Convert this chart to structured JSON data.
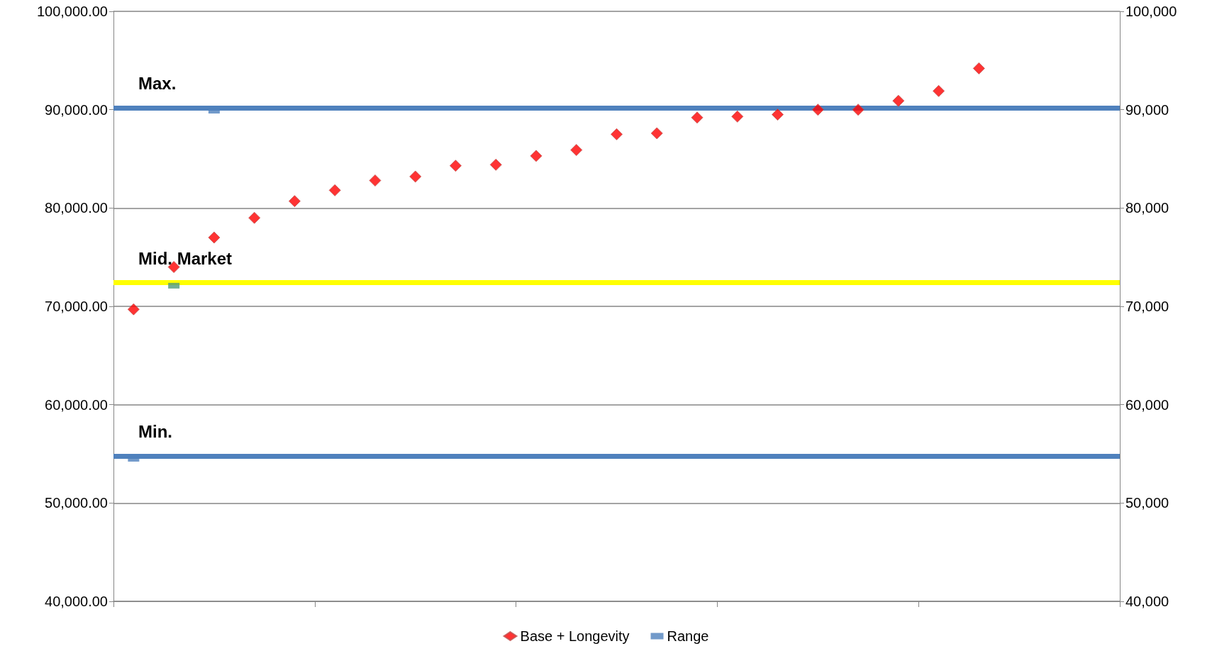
{
  "chart_data": {
    "type": "scatter",
    "categories": [
      null,
      null,
      null,
      null,
      null,
      null,
      null,
      null,
      null,
      null,
      null,
      null,
      null,
      null,
      null,
      null,
      null,
      null,
      null,
      null,
      null,
      null,
      null,
      null,
      null
    ],
    "series": [
      {
        "name": "Base + Longevity",
        "color": "#ff0000",
        "marker": "diamond",
        "values": [
          69700,
          74000,
          77000,
          79000,
          80700,
          81800,
          82800,
          83200,
          84300,
          84400,
          85300,
          85900,
          87500,
          87600,
          89200,
          89300,
          89500,
          90000,
          90000,
          90900,
          91900,
          94200,
          null,
          null,
          null
        ]
      },
      {
        "name": "Range",
        "color": "#4f81bd",
        "marker": "square",
        "colors": [
          "#4f81bd",
          "#4f9a78",
          "#4f81bd",
          null,
          null,
          null,
          null,
          null,
          null,
          null,
          null,
          null,
          null,
          null,
          null,
          null,
          null,
          null,
          null,
          null,
          null,
          null,
          null,
          null,
          null
        ],
        "values": [
          54500,
          72100,
          89900,
          null,
          null,
          null,
          null,
          null,
          null,
          null,
          null,
          null,
          null,
          null,
          null,
          null,
          null,
          null,
          null,
          null,
          null,
          null,
          null,
          null,
          null
        ]
      }
    ],
    "ylim": [
      40000,
      100000
    ],
    "yticks": [
      {
        "value": 40000,
        "label": "40,000.00"
      },
      {
        "value": 50000,
        "label": "50,000.00"
      },
      {
        "value": 60000,
        "label": "60,000.00"
      },
      {
        "value": 70000,
        "label": "70,000.00"
      },
      {
        "value": 80000,
        "label": "80,000.00"
      },
      {
        "value": 90000,
        "label": "90,000.00"
      },
      {
        "value": 100000,
        "label": "100,000.00"
      }
    ],
    "y2lim": [
      40000,
      100000
    ],
    "y2ticks": [
      {
        "value": 40000,
        "label": "40,000"
      },
      {
        "value": 50000,
        "label": "50,000"
      },
      {
        "value": 60000,
        "label": "60,000"
      },
      {
        "value": 70000,
        "label": "70,000"
      },
      {
        "value": 80000,
        "label": "80,000"
      },
      {
        "value": 90000,
        "label": "90,000"
      },
      {
        "value": 100000,
        "label": "100,000"
      }
    ],
    "ref_lines": [
      {
        "axis": "y",
        "value": 90200,
        "label": "Max.",
        "color": "#4f81bd"
      },
      {
        "axis": "y",
        "value": 72400,
        "label": "Mid. Market",
        "color": "#ffff00"
      },
      {
        "axis": "y",
        "value": 54800,
        "label": "Min.",
        "color": "#4f81bd"
      }
    ],
    "grid": "y",
    "legend": "bottom"
  }
}
